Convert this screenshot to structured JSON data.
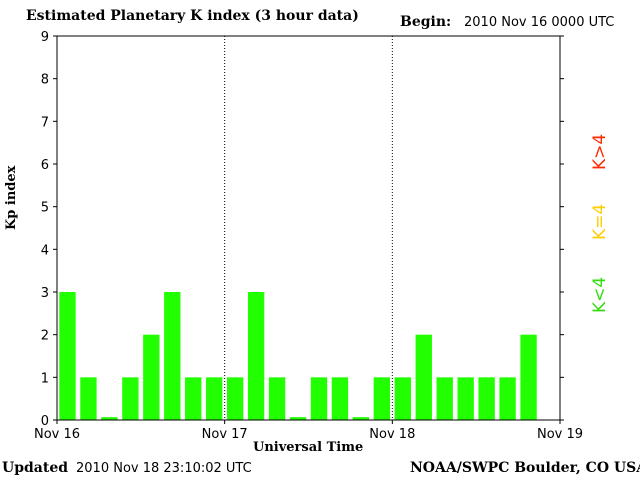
{
  "header": {
    "title": "Estimated Planetary K index (3 hour data)",
    "begin_label": "Begin:",
    "begin_value": "2010 Nov 16 0000 UTC"
  },
  "footer": {
    "updated_label": "Updated",
    "updated_value": "2010 Nov 18 23:10:02 UTC",
    "credit": "NOAA/SWPC Boulder, CO USA"
  },
  "legend": {
    "high": "K>4",
    "equal": "K=4",
    "low": "K<4",
    "colors": {
      "high": "#ff2a00",
      "equal": "#ffcc00",
      "low": "#22ff00"
    }
  },
  "chart_data": {
    "type": "bar",
    "title": "Estimated Planetary K index (3 hour data)",
    "xlabel": "Universal Time",
    "ylabel": "Kp index",
    "ylim": [
      0,
      9
    ],
    "yticks": [
      0,
      1,
      2,
      3,
      4,
      5,
      6,
      7,
      8,
      9
    ],
    "xtick_labels": [
      "Nov 16",
      "Nov 17",
      "Nov 18",
      "Nov 19"
    ],
    "bar_color": "#22ff00",
    "grid": false,
    "day_separators": true,
    "values": [
      3,
      1,
      0.067,
      1,
      2,
      3,
      1,
      1,
      1,
      3,
      1,
      0.067,
      1,
      1,
      0.067,
      1,
      1,
      2,
      1,
      1,
      1,
      1,
      2
    ]
  }
}
